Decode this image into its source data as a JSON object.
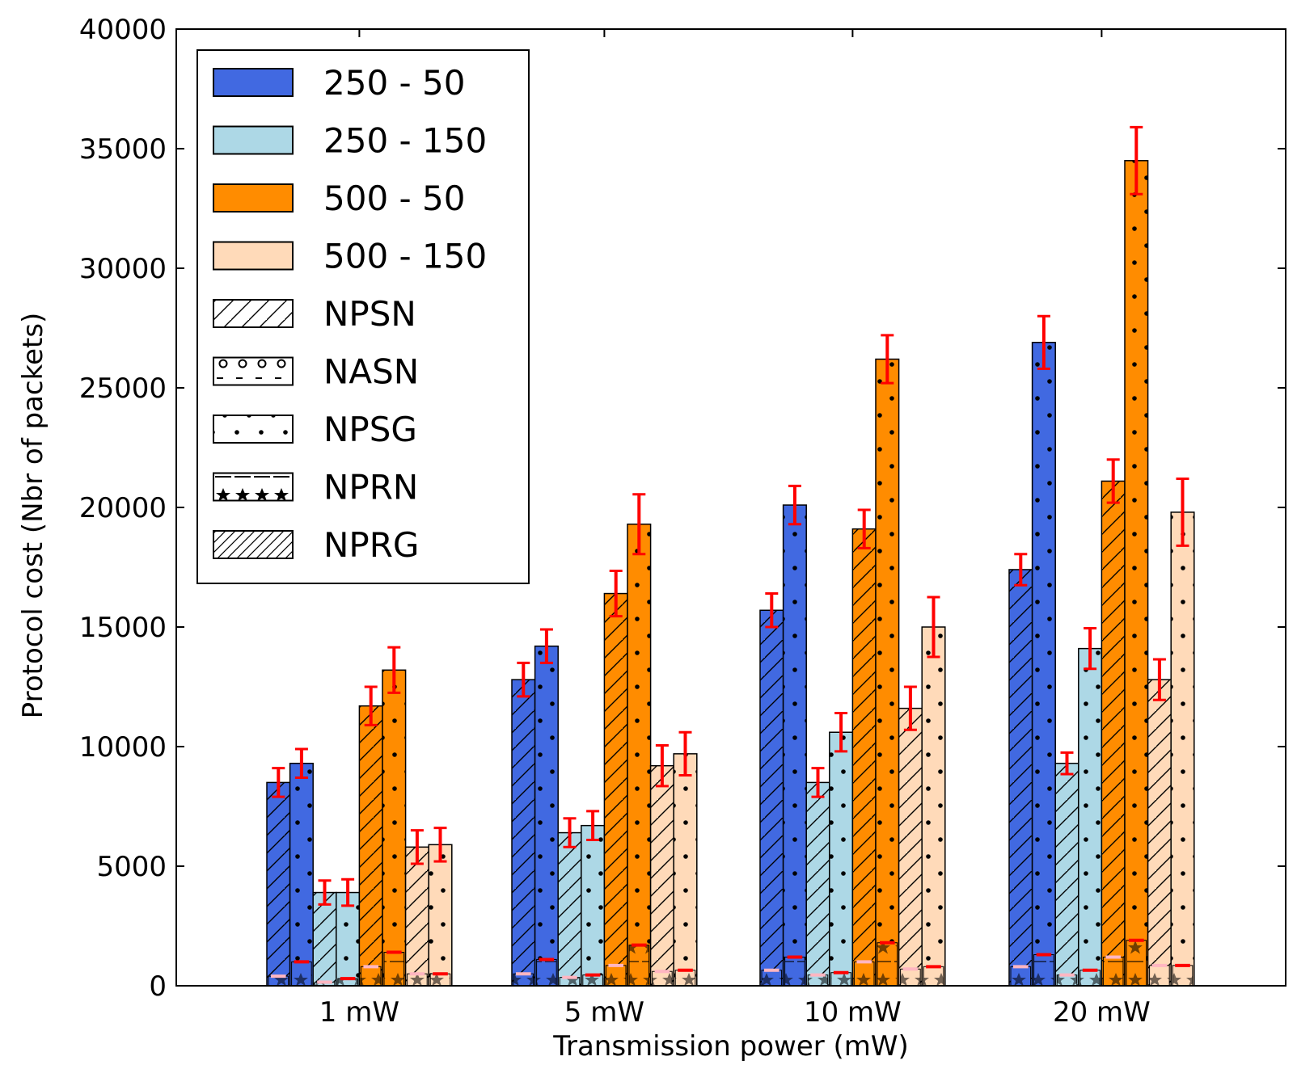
{
  "chart_data": {
    "type": "bar",
    "xlabel": "Transmission power (mW)",
    "ylabel": "Protocol cost (Nbr of packets)",
    "ylim": [
      0,
      40000
    ],
    "yticks": [
      "0",
      "5000",
      "10000",
      "15000",
      "20000",
      "25000",
      "30000",
      "35000",
      "40000"
    ],
    "categories": [
      "1 mW",
      "5 mW",
      "10 mW",
      "20 mW"
    ],
    "legend_position": "top-left",
    "legend": {
      "colors": [
        {
          "label": "250 - 50",
          "color": "#4169e1"
        },
        {
          "label": "250 - 150",
          "color": "#add8e6"
        },
        {
          "label": "500 - 50",
          "color": "#ff8c00"
        },
        {
          "label": "500 - 150",
          "color": "#ffdab9"
        }
      ],
      "patterns": [
        {
          "label": "NPSN",
          "pattern": "single-hatch"
        },
        {
          "label": "NASN",
          "pattern": "circles"
        },
        {
          "label": "NPSG",
          "pattern": "dots"
        },
        {
          "label": "NPRN",
          "pattern": "stars"
        },
        {
          "label": "NPRG",
          "pattern": "double-hatch"
        }
      ]
    },
    "error_bar_color": "#ff0000",
    "groups": [
      {
        "color": "#4169e1",
        "protocol": "NPRG",
        "values": [
          8500,
          12800,
          15700,
          17400
        ],
        "errors": [
          600,
          700,
          700,
          650
        ]
      },
      {
        "color": "#4169e1",
        "protocol": "NPSG",
        "values": [
          9300,
          14200,
          20100,
          26900
        ],
        "errors": [
          600,
          700,
          800,
          1100
        ]
      },
      {
        "color": "#add8e6",
        "protocol": "NPRG",
        "values": [
          3900,
          6400,
          8500,
          9300
        ],
        "errors": [
          500,
          600,
          600,
          450
        ]
      },
      {
        "color": "#add8e6",
        "protocol": "NPSG",
        "values": [
          3900,
          6700,
          10600,
          14100
        ],
        "errors": [
          550,
          600,
          800,
          850
        ]
      },
      {
        "color": "#ff8c00",
        "protocol": "NPRG",
        "values": [
          11700,
          16400,
          19100,
          21100
        ],
        "errors": [
          800,
          950,
          800,
          900
        ]
      },
      {
        "color": "#ff8c00",
        "protocol": "NPSG",
        "values": [
          13200,
          19300,
          26200,
          34500
        ],
        "errors": [
          950,
          1250,
          1000,
          1400
        ]
      },
      {
        "color": "#ffdab9",
        "protocol": "NPRG",
        "values": [
          5800,
          9200,
          11600,
          12800
        ],
        "errors": [
          700,
          850,
          900,
          850
        ]
      },
      {
        "color": "#ffdab9",
        "protocol": "NPSG",
        "values": [
          5900,
          9700,
          15000,
          19800
        ],
        "errors": [
          700,
          900,
          1250,
          1400
        ]
      }
    ],
    "small_markers": [
      {
        "values": [
          400,
          500,
          650,
          800
        ],
        "marker_color": "#ffb6c1"
      },
      {
        "values": [
          1000,
          1100,
          1200,
          1300
        ],
        "marker_color": "#ff0000"
      },
      {
        "values": [
          150,
          350,
          450,
          450
        ],
        "marker_color": "#ffb6c1"
      },
      {
        "values": [
          300,
          450,
          550,
          650
        ],
        "marker_color": "#ff0000"
      },
      {
        "values": [
          800,
          850,
          1000,
          1200
        ],
        "marker_color": "#ffb6c1"
      },
      {
        "values": [
          1400,
          1700,
          1800,
          1900
        ],
        "marker_color": "#ff0000"
      },
      {
        "values": [
          500,
          600,
          700,
          850
        ],
        "marker_color": "#ffb6c1"
      },
      {
        "values": [
          500,
          650,
          800,
          850
        ],
        "marker_color": "#ff0000"
      }
    ]
  }
}
